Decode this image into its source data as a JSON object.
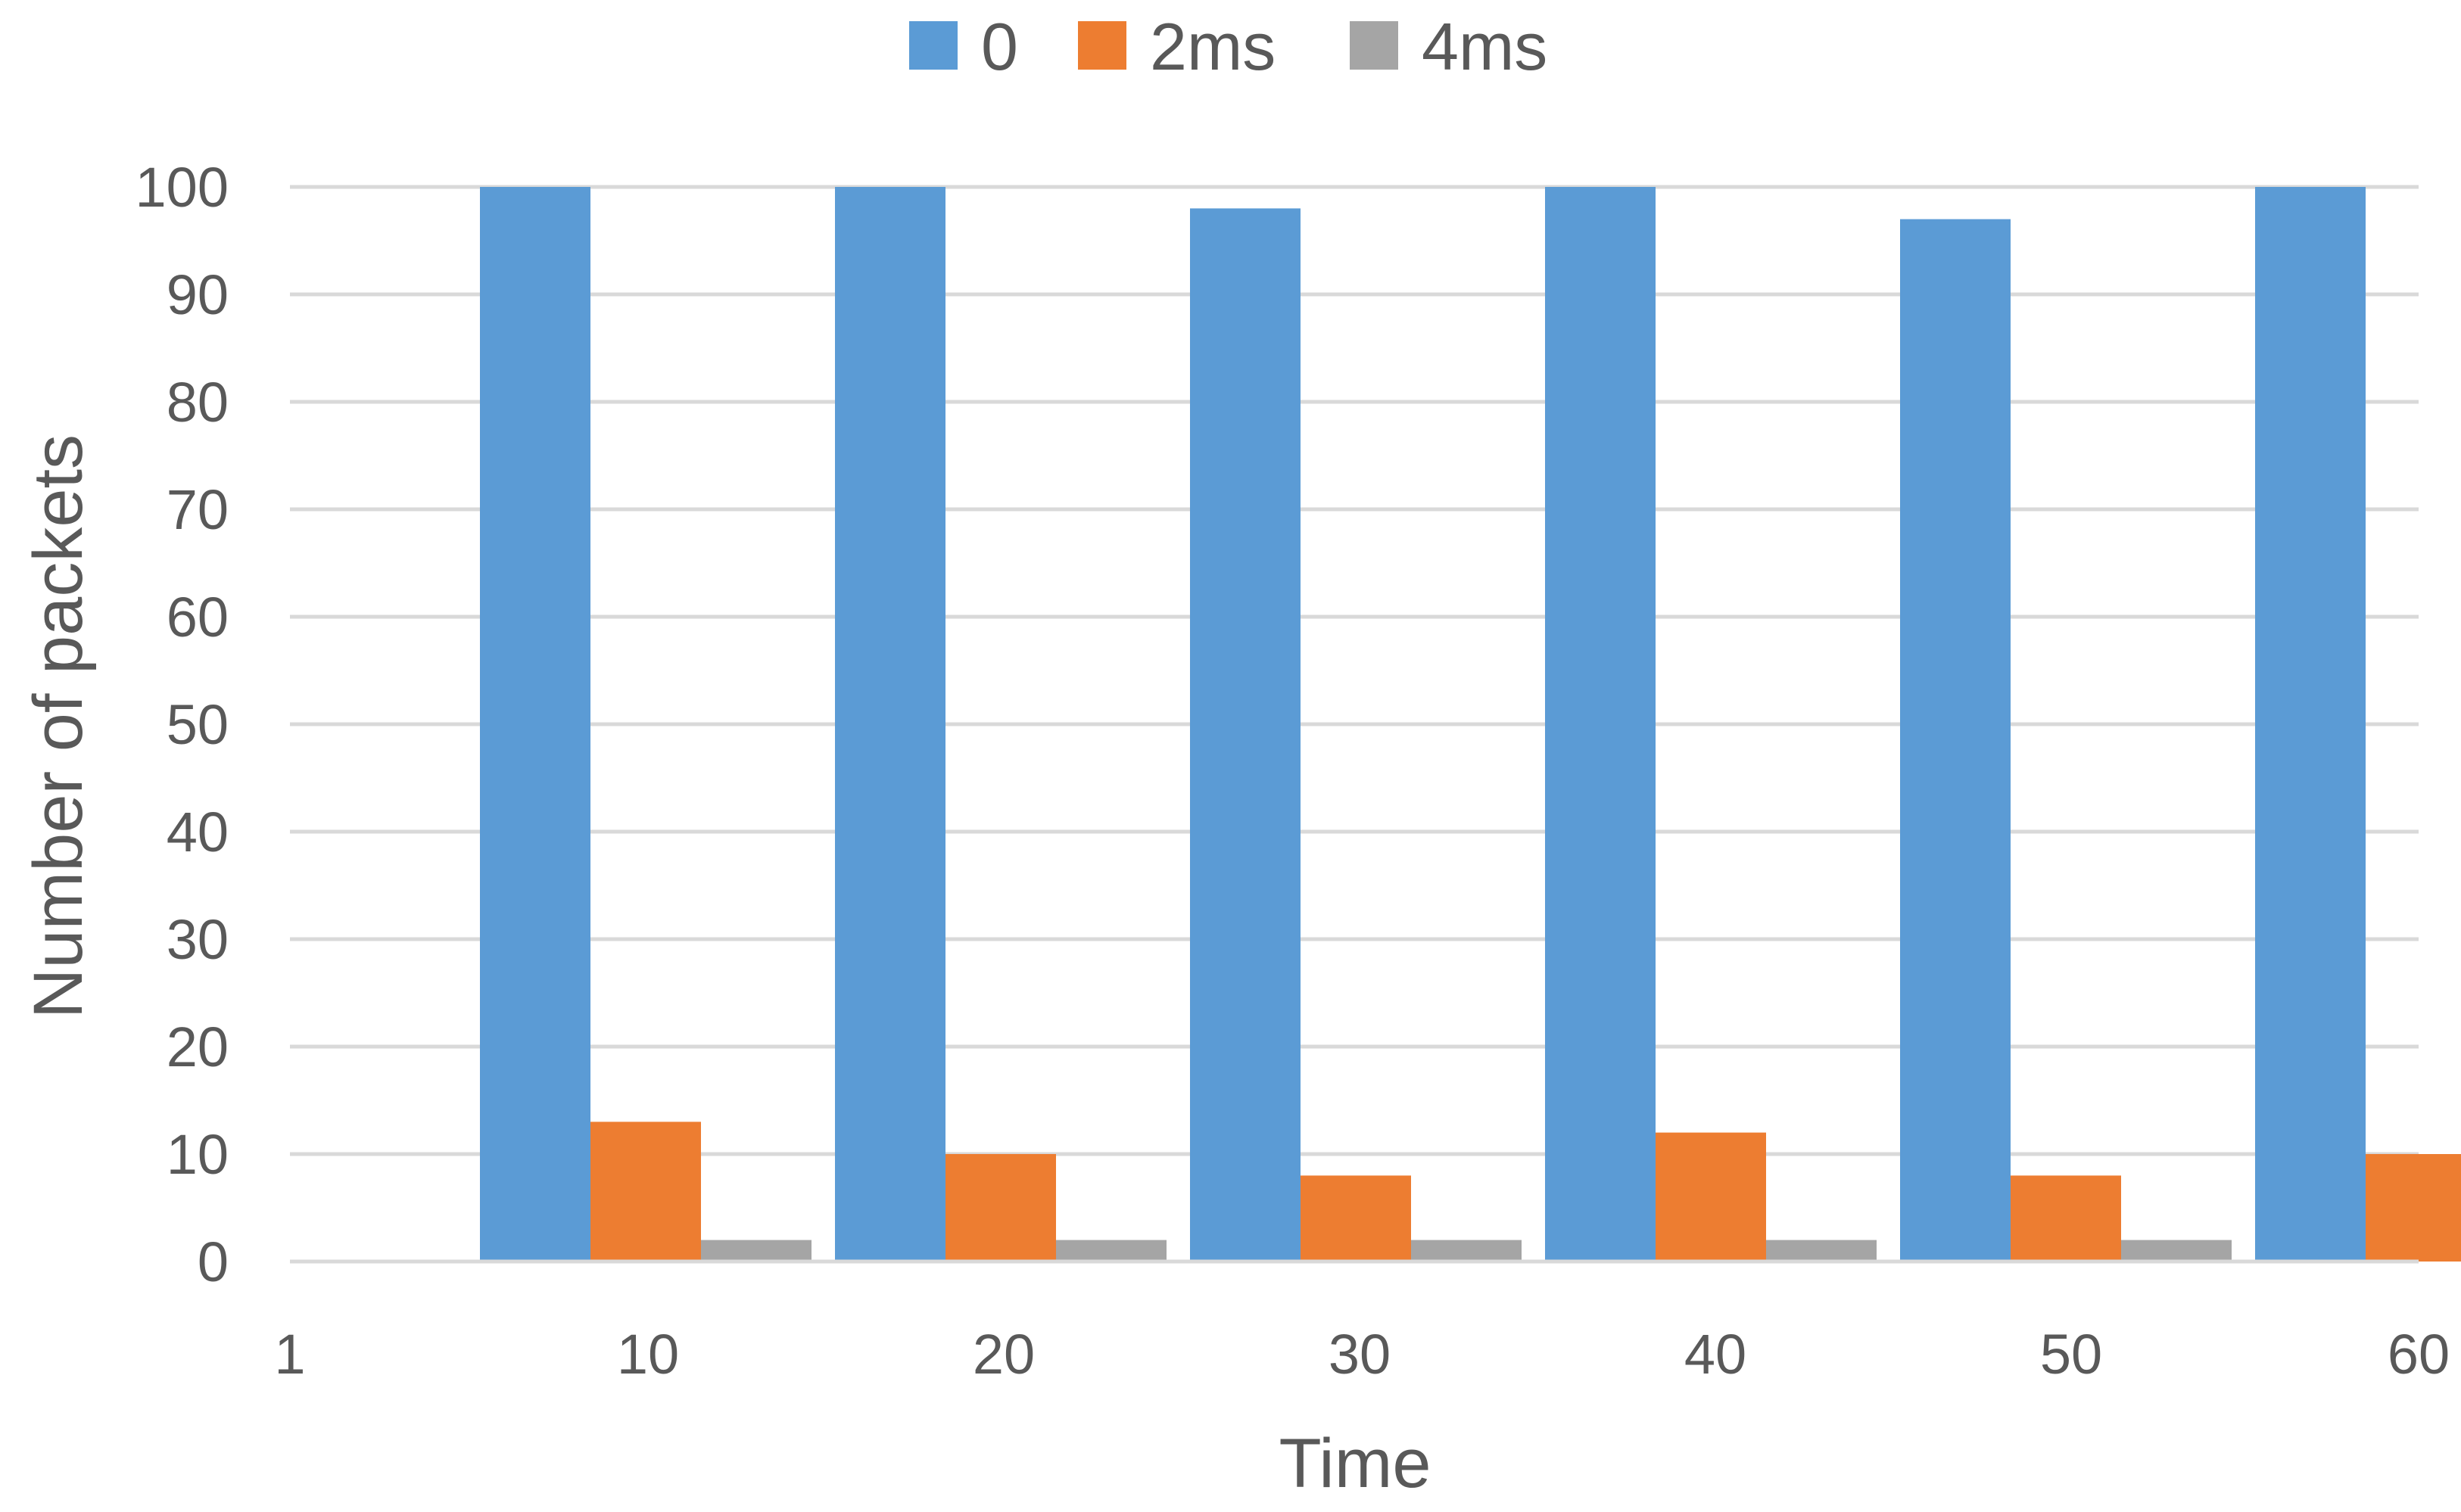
{
  "chart_data": {
    "type": "bar",
    "title": "",
    "xlabel": "Time",
    "ylabel": "Number of packets",
    "categories": [
      "1",
      "10",
      "20",
      "30",
      "40",
      "50",
      "60"
    ],
    "series": [
      {
        "name": "0",
        "color": "#5B9BD5",
        "values": [
          0,
          100,
          100,
          98,
          100,
          97,
          100
        ]
      },
      {
        "name": "2ms",
        "color": "#ED7D31",
        "values": [
          0,
          13,
          10,
          8,
          12,
          8,
          10
        ]
      },
      {
        "name": "4ms",
        "color": "#A5A5A5",
        "values": [
          0,
          2,
          2,
          2,
          2,
          2,
          2
        ]
      }
    ],
    "ylim": [
      0,
      100
    ],
    "yticks": [
      0,
      10,
      20,
      30,
      40,
      50,
      60,
      70,
      80,
      90,
      100
    ],
    "grid": true,
    "legend_position": "top-center"
  }
}
